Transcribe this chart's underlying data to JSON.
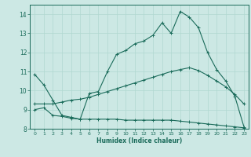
{
  "xlabel": "Humidex (Indice chaleur)",
  "bg_color": "#cce8e4",
  "line_color": "#1a6b5a",
  "grid_color": "#b0d8d0",
  "xlim": [
    -0.5,
    23.5
  ],
  "ylim": [
    8,
    14.5
  ],
  "xticks": [
    0,
    1,
    2,
    3,
    4,
    5,
    6,
    7,
    8,
    9,
    10,
    11,
    12,
    13,
    14,
    15,
    16,
    17,
    18,
    19,
    20,
    21,
    22,
    23
  ],
  "yticks": [
    8,
    9,
    10,
    11,
    12,
    13,
    14
  ],
  "curve1_x": [
    0,
    1,
    2,
    3,
    4,
    5,
    6,
    7,
    8,
    9,
    10,
    11,
    12,
    13,
    14,
    15,
    16,
    17,
    18,
    19,
    20,
    21,
    22,
    23
  ],
  "curve1_y": [
    10.85,
    10.3,
    9.5,
    8.7,
    8.6,
    8.5,
    9.85,
    9.95,
    11.0,
    11.9,
    12.1,
    12.45,
    12.6,
    12.9,
    13.55,
    13.0,
    14.15,
    13.85,
    13.3,
    12.0,
    11.1,
    10.5,
    9.7,
    8.1
  ],
  "curve2_x": [
    0,
    1,
    2,
    3,
    4,
    5,
    6,
    7,
    8,
    9,
    10,
    11,
    12,
    13,
    14,
    15,
    16,
    17,
    18,
    19,
    20,
    21,
    22,
    23
  ],
  "curve2_y": [
    9.3,
    9.3,
    9.3,
    9.4,
    9.5,
    9.55,
    9.65,
    9.8,
    9.95,
    10.1,
    10.25,
    10.4,
    10.55,
    10.7,
    10.85,
    11.0,
    11.1,
    11.2,
    11.05,
    10.8,
    10.5,
    10.2,
    9.8,
    9.3
  ],
  "curve3_x": [
    0,
    1,
    2,
    3,
    4,
    5,
    6,
    7,
    8,
    9,
    10,
    11,
    12,
    13,
    14,
    15,
    16,
    17,
    18,
    19,
    20,
    21,
    22,
    23
  ],
  "curve3_y": [
    9.0,
    9.1,
    8.7,
    8.65,
    8.55,
    8.5,
    8.5,
    8.5,
    8.5,
    8.5,
    8.45,
    8.45,
    8.45,
    8.45,
    8.45,
    8.45,
    8.4,
    8.35,
    8.3,
    8.25,
    8.2,
    8.15,
    8.1,
    8.05
  ]
}
